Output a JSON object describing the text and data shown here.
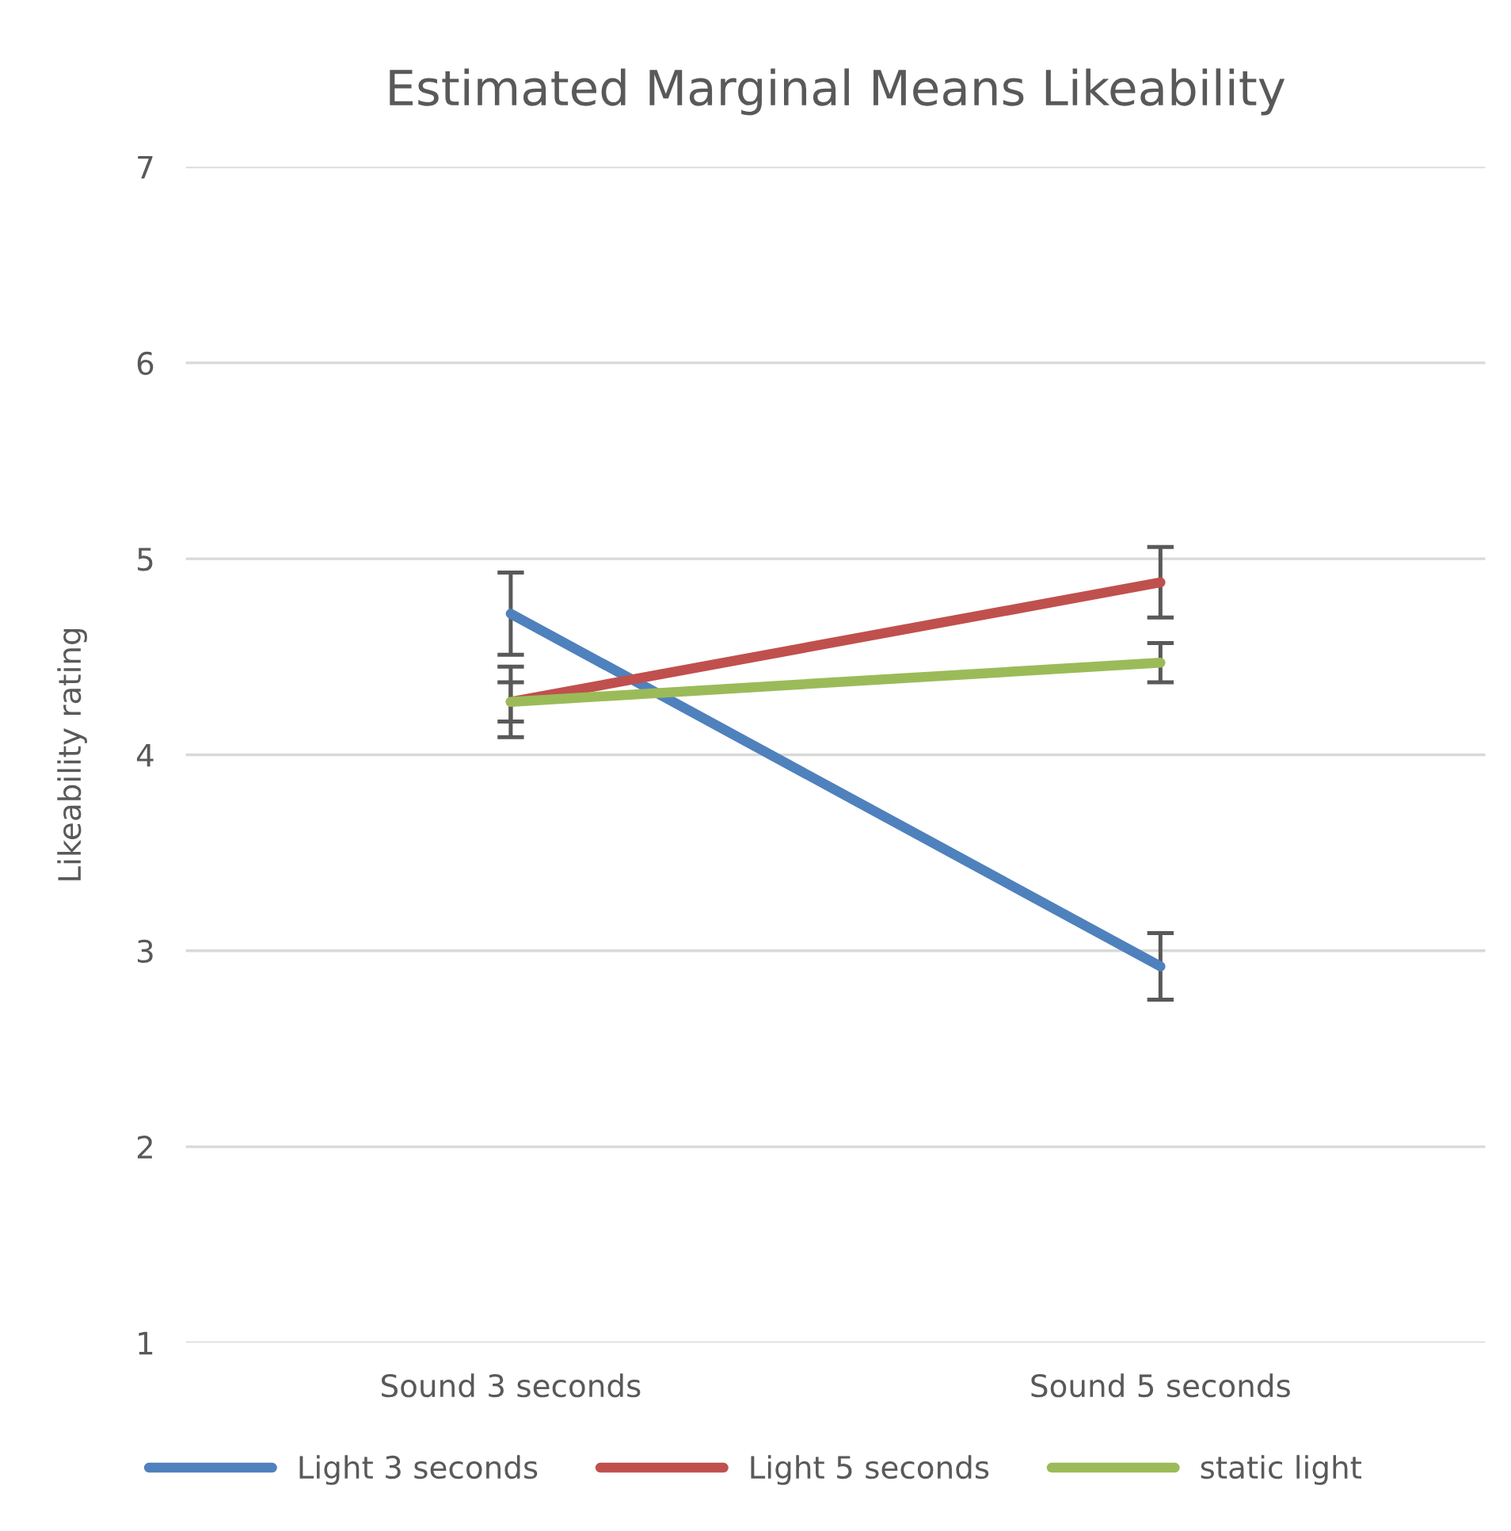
{
  "chart_data": {
    "type": "line",
    "title": "Estimated Marginal Means Likeability",
    "ylabel": "Likeability rating",
    "categories": [
      "Sound 3 seconds",
      "Sound 5 seconds"
    ],
    "series": [
      {
        "name": "Light 3 seconds",
        "color": "#4f81bd",
        "values": [
          4.72,
          2.92
        ],
        "errors": [
          0.21,
          0.17
        ]
      },
      {
        "name": "Light 5 seconds",
        "color": "#c0504d",
        "values": [
          4.27,
          4.88
        ],
        "errors": [
          0.18,
          0.18
        ]
      },
      {
        "name": "static light",
        "color": "#9bbb59",
        "values": [
          4.27,
          4.47
        ],
        "errors": [
          0.1,
          0.1
        ]
      }
    ],
    "ylim": [
      1,
      7
    ],
    "yticks": [
      1,
      2,
      3,
      4,
      5,
      6,
      7
    ],
    "grid": "y",
    "legend": "bottom",
    "marker": "none",
    "line_style": "solid"
  }
}
